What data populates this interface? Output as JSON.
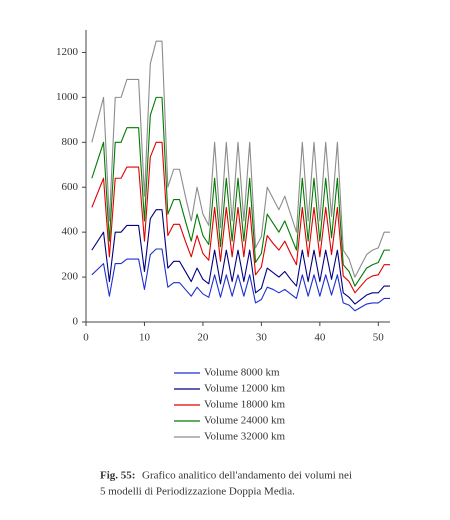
{
  "chart_data": {
    "type": "line",
    "x": [
      1,
      2,
      3,
      4,
      5,
      6,
      7,
      8,
      9,
      10,
      11,
      12,
      13,
      14,
      15,
      16,
      17,
      18,
      19,
      20,
      21,
      22,
      23,
      24,
      25,
      26,
      27,
      28,
      29,
      30,
      31,
      32,
      33,
      34,
      35,
      36,
      37,
      38,
      39,
      40,
      41,
      42,
      43,
      44,
      45,
      46,
      47,
      48,
      49,
      50,
      51,
      52
    ],
    "xlim": [
      0,
      52
    ],
    "xticks": [
      0,
      10,
      20,
      30,
      40,
      50
    ],
    "ylim": [
      0,
      1300
    ],
    "yticks": [
      0,
      200,
      400,
      600,
      800,
      1000,
      1200
    ],
    "grid": false,
    "series": [
      {
        "name": "Volume 8000 km",
        "color": "#1f2fd0",
        "values": [
          210,
          235,
          260,
          115,
          260,
          260,
          280,
          280,
          280,
          145,
          300,
          325,
          325,
          155,
          175,
          175,
          145,
          115,
          155,
          125,
          110,
          210,
          110,
          210,
          115,
          210,
          115,
          210,
          85,
          100,
          155,
          145,
          130,
          145,
          125,
          105,
          210,
          115,
          210,
          115,
          210,
          120,
          210,
          85,
          75,
          50,
          65,
          80,
          85,
          85,
          105,
          105
        ]
      },
      {
        "name": "Volume 12000 km",
        "color": "#000080",
        "values": [
          320,
          360,
          400,
          180,
          400,
          400,
          430,
          430,
          430,
          225,
          460,
          500,
          500,
          240,
          270,
          270,
          225,
          180,
          240,
          190,
          170,
          320,
          170,
          320,
          180,
          320,
          180,
          320,
          130,
          150,
          240,
          220,
          200,
          225,
          190,
          160,
          320,
          180,
          320,
          180,
          320,
          190,
          320,
          130,
          110,
          80,
          100,
          120,
          130,
          130,
          160,
          160
        ]
      },
      {
        "name": "Volume 18000 km",
        "color": "#e00000",
        "values": [
          510,
          575,
          640,
          290,
          640,
          640,
          690,
          690,
          690,
          360,
          735,
          800,
          800,
          385,
          435,
          435,
          360,
          290,
          385,
          305,
          275,
          510,
          270,
          510,
          290,
          510,
          290,
          510,
          210,
          245,
          385,
          350,
          320,
          360,
          305,
          255,
          510,
          290,
          510,
          290,
          510,
          300,
          510,
          205,
          180,
          130,
          160,
          190,
          205,
          210,
          255,
          255
        ]
      },
      {
        "name": "Volume 24000 km",
        "color": "#007a00",
        "values": [
          640,
          720,
          800,
          360,
          800,
          800,
          865,
          865,
          865,
          450,
          920,
          1000,
          1000,
          480,
          545,
          545,
          450,
          360,
          480,
          385,
          345,
          640,
          335,
          640,
          360,
          640,
          360,
          640,
          265,
          305,
          480,
          440,
          400,
          450,
          385,
          320,
          640,
          360,
          640,
          360,
          640,
          375,
          640,
          255,
          225,
          160,
          200,
          240,
          255,
          265,
          320,
          320
        ]
      },
      {
        "name": "Volume 32000 km",
        "color": "#8c8c8c",
        "values": [
          800,
          900,
          1000,
          450,
          1000,
          1000,
          1080,
          1080,
          1080,
          560,
          1150,
          1250,
          1250,
          600,
          680,
          680,
          560,
          450,
          600,
          480,
          430,
          800,
          420,
          800,
          450,
          800,
          450,
          800,
          330,
          380,
          600,
          550,
          500,
          560,
          480,
          400,
          800,
          450,
          800,
          450,
          800,
          470,
          800,
          320,
          280,
          200,
          250,
          300,
          320,
          330,
          400,
          400
        ]
      }
    ]
  },
  "caption": {
    "label": "Fig. 55:",
    "lines": [
      "Grafico analitico dell'andamento dei volumi nei",
      "5 modelli di Periodizzazione Doppia Media."
    ]
  }
}
